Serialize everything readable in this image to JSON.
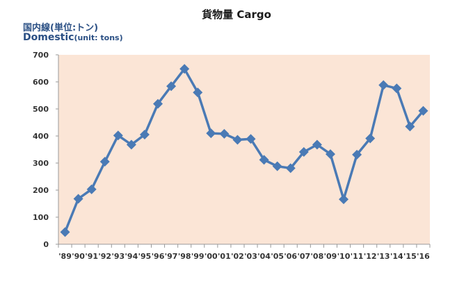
{
  "title": "貨物量 Cargo",
  "unit_label_jp": "国内線(単位:トン)",
  "unit_label_en_main": "Domestic",
  "unit_label_en_sub": "(unit: tons)",
  "colors": {
    "plot_background": "#fbe5d6",
    "series": "#4a7ab5",
    "axis": "#999999"
  },
  "chart_data": {
    "type": "line",
    "title": "貨物量 Cargo",
    "ylabel": "Domestic(unit: tons)",
    "ylim": [
      0,
      700
    ],
    "yticks": [
      0,
      100,
      200,
      300,
      400,
      500,
      600,
      700
    ],
    "grid": false,
    "categories": [
      "'89",
      "'90",
      "'91",
      "'92",
      "'93",
      "'94",
      "'95",
      "'96",
      "'97",
      "'98",
      "'99",
      "'00",
      "'01",
      "'02",
      "'03",
      "'04",
      "'05",
      "'06",
      "'07",
      "'08",
      "'09",
      "'10",
      "'11",
      "'12",
      "'13",
      "'14",
      "'15",
      "'16"
    ],
    "series": [
      {
        "values": [
          45,
          168,
          203,
          305,
          402,
          368,
          405,
          519,
          584,
          648,
          561,
          410,
          408,
          386,
          389,
          312,
          288,
          281,
          341,
          368,
          333,
          166,
          331,
          391,
          588,
          576,
          435,
          493
        ]
      }
    ]
  }
}
